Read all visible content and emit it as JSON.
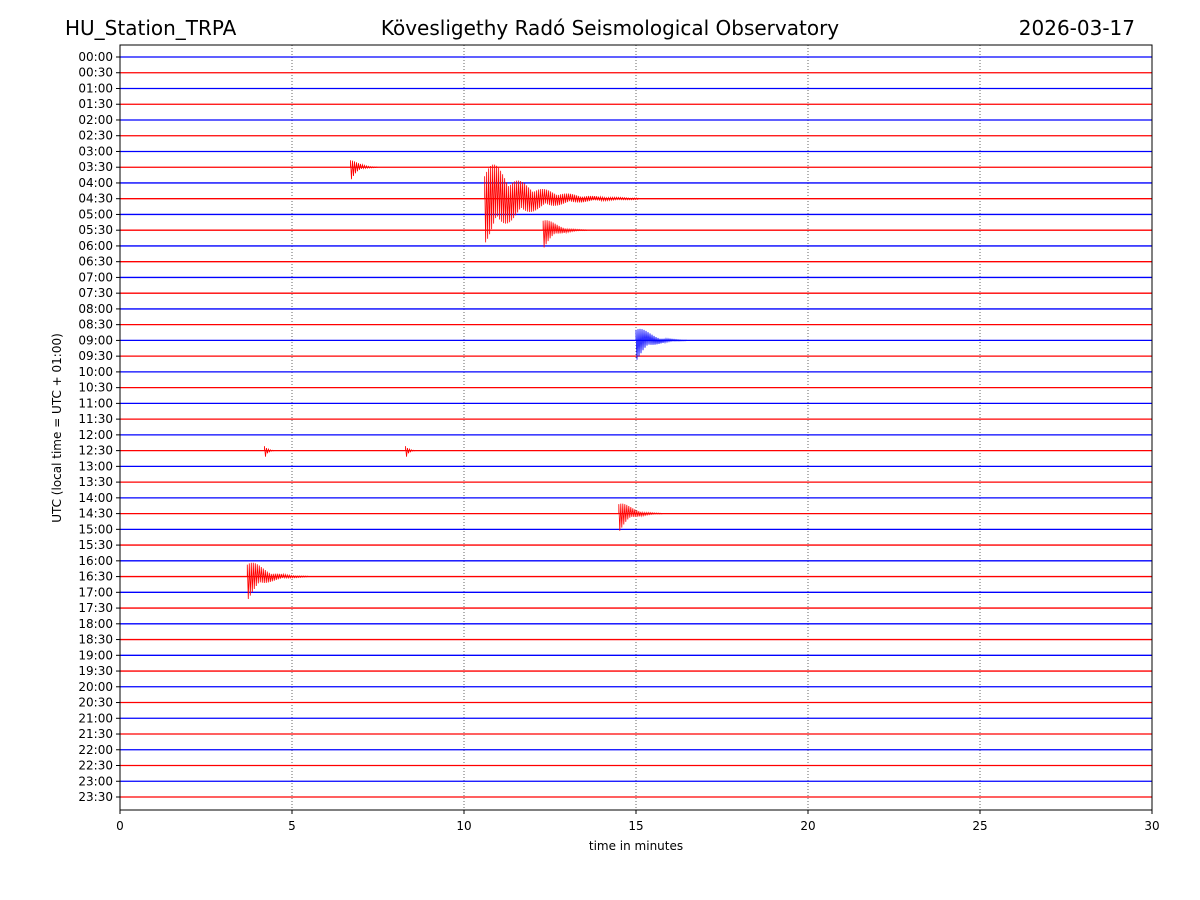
{
  "chart_data": {
    "type": "helicorder",
    "station": "HU_Station_TRPA",
    "title": "Kövesligethy Radó Seismological Observatory",
    "date": "2026-03-17",
    "xlabel": "time in minutes",
    "ylabel": "UTC (local time = UTC + 01:00)",
    "xlim": [
      0,
      30
    ],
    "xticks": [
      0,
      5,
      10,
      15,
      20,
      25,
      30
    ],
    "grid": true,
    "colors": [
      "#0000ff",
      "#ff0000"
    ],
    "rows": [
      "00:00",
      "00:30",
      "01:00",
      "01:30",
      "02:00",
      "02:30",
      "03:00",
      "03:30",
      "04:00",
      "04:30",
      "05:00",
      "05:30",
      "06:00",
      "06:30",
      "07:00",
      "07:30",
      "08:00",
      "08:30",
      "09:00",
      "09:30",
      "10:00",
      "10:30",
      "11:00",
      "11:30",
      "12:00",
      "12:30",
      "13:00",
      "13:30",
      "14:00",
      "14:30",
      "15:00",
      "15:30",
      "16:00",
      "16:30",
      "17:00",
      "17:30",
      "18:00",
      "18:30",
      "19:00",
      "19:30",
      "20:00",
      "20:30",
      "21:00",
      "21:30",
      "22:00",
      "22:30",
      "23:00",
      "23:30"
    ],
    "events": [
      {
        "row": "03:30",
        "minute": 6.7,
        "duration": 0.8
      },
      {
        "row": "04:30",
        "minute": 10.6,
        "duration": 4.5
      },
      {
        "row": "05:30",
        "minute": 12.3,
        "duration": 1.3
      },
      {
        "row": "09:00",
        "minute": 15.0,
        "duration": 1.5
      },
      {
        "row": "12:30",
        "minute": 4.2,
        "duration": 0.3
      },
      {
        "row": "12:30",
        "minute": 8.3,
        "duration": 0.3
      },
      {
        "row": "14:30",
        "minute": 14.5,
        "duration": 1.3
      },
      {
        "row": "16:30",
        "minute": 3.7,
        "duration": 1.8
      }
    ]
  }
}
